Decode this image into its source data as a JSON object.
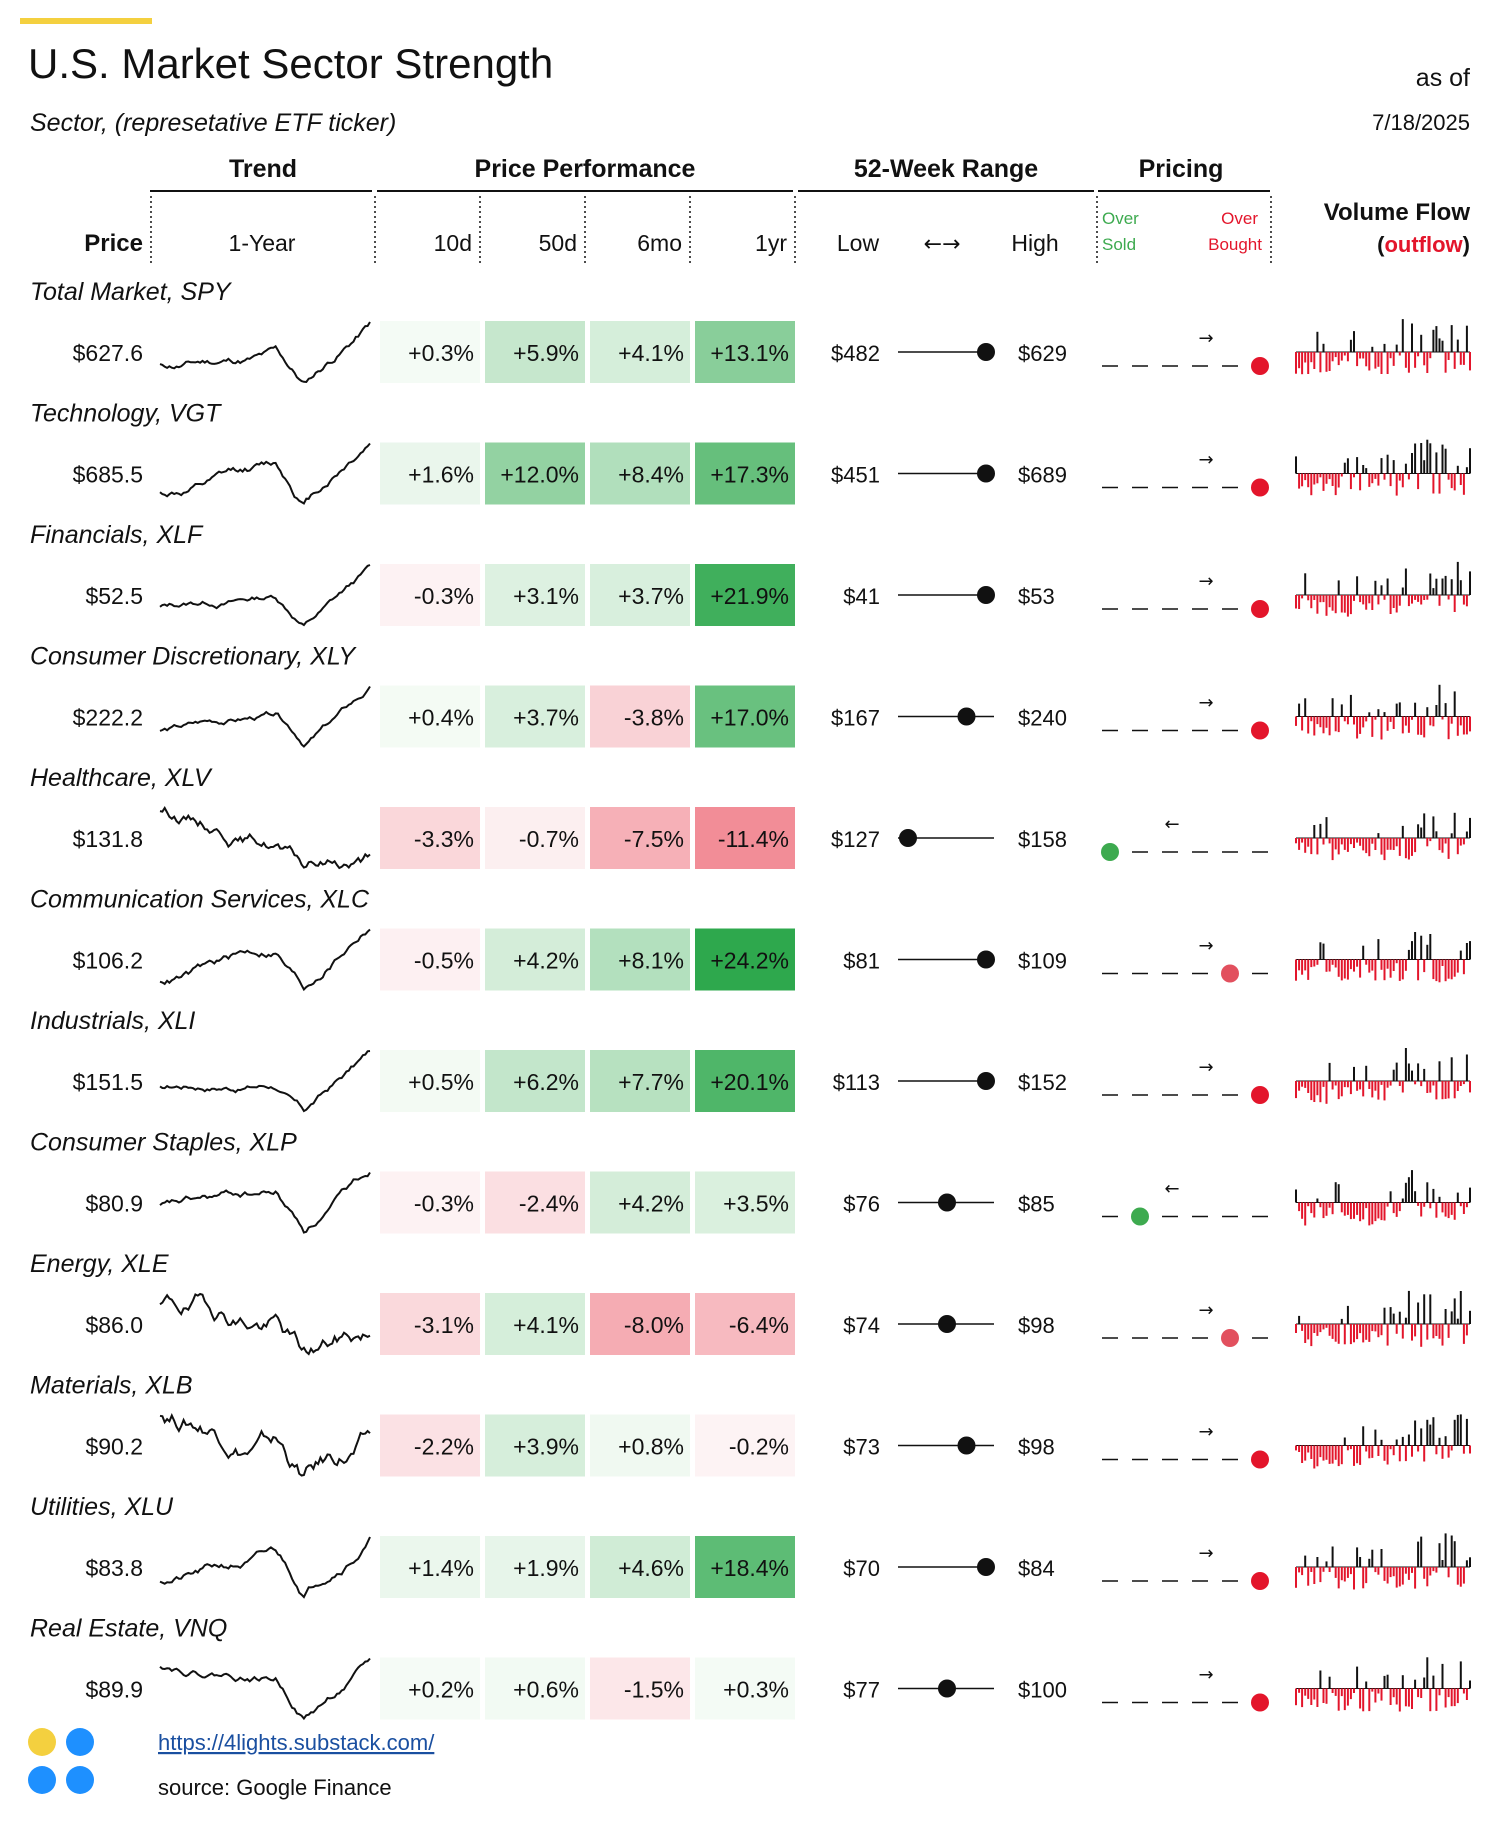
{
  "header": {
    "title": "U.S. Market Sector Strength",
    "subtitle": "Sector, (represetative ETF ticker)",
    "as_of_label": "as of",
    "as_of_date": "7/18/2025",
    "accent_color": "#f4d03f"
  },
  "groups": {
    "trend": "Trend",
    "perf": "Price Performance",
    "range": "52-Week Range",
    "pricing": "Pricing",
    "flow_line1": "Volume Flow",
    "flow_line2_open": "(",
    "flow_line2_word": "outflow",
    "flow_line2_close": ")"
  },
  "columns": {
    "price": "Price",
    "trend": "1-Year",
    "d10": "10d",
    "d50": "50d",
    "m6": "6mo",
    "y1": "1yr",
    "low": "Low",
    "arrows": "←→",
    "high": "High",
    "oversold_1": "Over",
    "oversold_2": "Sold",
    "overbought_1": "Over",
    "overbought_2": "Bought"
  },
  "footer": {
    "link": "https://4lights.substack.com/",
    "source": "source: Google Finance"
  },
  "colors": {
    "oversold": "#3daa4f",
    "overbought": "#e3152b",
    "outflow": "#e3152b",
    "inflow": "#111111"
  },
  "chart_data": {
    "type": "table",
    "columns": [
      "Price",
      "1-Year",
      "10d",
      "50d",
      "6mo",
      "1yr",
      "Low",
      "High",
      "Pricing",
      "Volume Flow"
    ],
    "rows": [
      {
        "sector": "Total Market, SPY",
        "price": "$627.6",
        "d10": "+0.3%",
        "d50": "+5.9%",
        "m6": "+4.1%",
        "y1": "+13.1%",
        "perf": [
          0.3,
          5.9,
          4.1,
          13.1
        ],
        "low": "$482",
        "high": "$629",
        "range_pos": 1.0,
        "pricing_pos": 5,
        "pricing_dir": "→",
        "trend_seed": 11,
        "flow_seed": 3
      },
      {
        "sector": "Technology, VGT",
        "price": "$685.5",
        "d10": "+1.6%",
        "d50": "+12.0%",
        "m6": "+8.4%",
        "y1": "+17.3%",
        "perf": [
          1.6,
          12.0,
          8.4,
          17.3
        ],
        "low": "$451",
        "high": "$689",
        "range_pos": 1.0,
        "pricing_pos": 5,
        "pricing_dir": "→",
        "trend_seed": 12,
        "flow_seed": 4
      },
      {
        "sector": "Financials, XLF",
        "price": "$52.5",
        "d10": "-0.3%",
        "d50": "+3.1%",
        "m6": "+3.7%",
        "y1": "+21.9%",
        "perf": [
          -0.3,
          3.1,
          3.7,
          21.9
        ],
        "low": "$41",
        "high": "$53",
        "range_pos": 1.0,
        "pricing_pos": 5,
        "pricing_dir": "→",
        "trend_seed": 13,
        "flow_seed": 5
      },
      {
        "sector": "Consumer Discretionary, XLY",
        "price": "$222.2",
        "d10": "+0.4%",
        "d50": "+3.7%",
        "m6": "-3.8%",
        "y1": "+17.0%",
        "perf": [
          0.4,
          3.7,
          -3.8,
          17.0
        ],
        "low": "$167",
        "high": "$240",
        "range_pos": 0.75,
        "pricing_pos": 5,
        "pricing_dir": "→",
        "trend_seed": 14,
        "flow_seed": 6
      },
      {
        "sector": "Healthcare, XLV",
        "price": "$131.8",
        "d10": "-3.3%",
        "d50": "-0.7%",
        "m6": "-7.5%",
        "y1": "-11.4%",
        "perf": [
          -3.3,
          -0.7,
          -7.5,
          -11.4
        ],
        "low": "$127",
        "high": "$158",
        "range_pos": 0.0,
        "pricing_pos": 0,
        "pricing_dir": "←",
        "trend_seed": 15,
        "flow_seed": 7
      },
      {
        "sector": "Communication Services, XLC",
        "price": "$106.2",
        "d10": "-0.5%",
        "d50": "+4.2%",
        "m6": "+8.1%",
        "y1": "+24.2%",
        "perf": [
          -0.5,
          4.2,
          8.1,
          24.2
        ],
        "low": "$81",
        "high": "$109",
        "range_pos": 1.0,
        "pricing_pos": 4,
        "pricing_dir": "→",
        "trend_seed": 16,
        "flow_seed": 8
      },
      {
        "sector": "Industrials, XLI",
        "price": "$151.5",
        "d10": "+0.5%",
        "d50": "+6.2%",
        "m6": "+7.7%",
        "y1": "+20.1%",
        "perf": [
          0.5,
          6.2,
          7.7,
          20.1
        ],
        "low": "$113",
        "high": "$152",
        "range_pos": 1.0,
        "pricing_pos": 5,
        "pricing_dir": "→",
        "trend_seed": 17,
        "flow_seed": 9
      },
      {
        "sector": "Consumer Staples, XLP",
        "price": "$80.9",
        "d10": "-0.3%",
        "d50": "-2.4%",
        "m6": "+4.2%",
        "y1": "+3.5%",
        "perf": [
          -0.3,
          -2.4,
          4.2,
          3.5
        ],
        "low": "$76",
        "high": "$85",
        "range_pos": 0.5,
        "pricing_pos": 1,
        "pricing_dir": "←",
        "trend_seed": 18,
        "flow_seed": 10
      },
      {
        "sector": "Energy, XLE",
        "price": "$86.0",
        "d10": "-3.1%",
        "d50": "+4.1%",
        "m6": "-8.0%",
        "y1": "-6.4%",
        "perf": [
          -3.1,
          4.1,
          -8.0,
          -6.4
        ],
        "low": "$74",
        "high": "$98",
        "range_pos": 0.5,
        "pricing_pos": 4,
        "pricing_dir": "→",
        "trend_seed": 19,
        "flow_seed": 11
      },
      {
        "sector": "Materials, XLB",
        "price": "$90.2",
        "d10": "-2.2%",
        "d50": "+3.9%",
        "m6": "+0.8%",
        "y1": "-0.2%",
        "perf": [
          -2.2,
          3.9,
          0.8,
          -0.2
        ],
        "low": "$73",
        "high": "$98",
        "range_pos": 0.75,
        "pricing_pos": 5,
        "pricing_dir": "→",
        "trend_seed": 20,
        "flow_seed": 12
      },
      {
        "sector": "Utilities, XLU",
        "price": "$83.8",
        "d10": "+1.4%",
        "d50": "+1.9%",
        "m6": "+4.6%",
        "y1": "+18.4%",
        "perf": [
          1.4,
          1.9,
          4.6,
          18.4
        ],
        "low": "$70",
        "high": "$84",
        "range_pos": 1.0,
        "pricing_pos": 5,
        "pricing_dir": "→",
        "trend_seed": 21,
        "flow_seed": 13
      },
      {
        "sector": "Real Estate, VNQ",
        "price": "$89.9",
        "d10": "+0.2%",
        "d50": "+0.6%",
        "m6": "-1.5%",
        "y1": "+0.3%",
        "perf": [
          0.2,
          0.6,
          -1.5,
          0.3
        ],
        "low": "$77",
        "high": "$100",
        "range_pos": 0.5,
        "pricing_pos": 5,
        "pricing_dir": "→",
        "trend_seed": 22,
        "flow_seed": 14
      }
    ]
  }
}
